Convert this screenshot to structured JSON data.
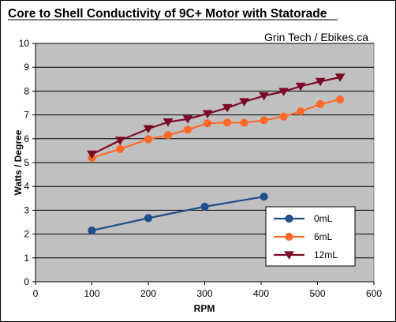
{
  "chart_data": {
    "type": "line",
    "title": "Core to Shell Conductivity of 9C+ Motor with Statorade",
    "subtitle": "Grin Tech / Ebikes.ca",
    "xlabel": "RPM",
    "ylabel": "Watts / Degree",
    "xlim": [
      0,
      600
    ],
    "ylim": [
      0,
      10
    ],
    "xticks": [
      "0",
      "100",
      "200",
      "300",
      "400",
      "500",
      "600"
    ],
    "yticks": [
      "0",
      "1",
      "2",
      "3",
      "4",
      "5",
      "6",
      "7",
      "8",
      "9",
      "10"
    ],
    "grid": "horizontal",
    "plot_background": "#c0c0c0",
    "legend_position": "bottom-right",
    "series": [
      {
        "name": "0mL",
        "color": "#1f4e8c",
        "marker": "circle",
        "x": [
          100,
          200,
          300,
          405
        ],
        "y": [
          2.15,
          2.67,
          3.15,
          3.57
        ]
      },
      {
        "name": "6mL",
        "color": "#ff6a2a",
        "marker": "circle",
        "x": [
          100,
          150,
          200,
          235,
          270,
          305,
          340,
          370,
          405,
          440,
          470,
          505,
          540
        ],
        "y": [
          5.2,
          5.57,
          5.98,
          6.15,
          6.38,
          6.65,
          6.68,
          6.67,
          6.77,
          6.93,
          7.15,
          7.45,
          7.65
        ]
      },
      {
        "name": "12mL",
        "color": "#7b0a26",
        "marker": "triangle-down",
        "x": [
          100,
          150,
          200,
          235,
          270,
          305,
          340,
          370,
          405,
          440,
          470,
          505,
          540
        ],
        "y": [
          5.35,
          5.93,
          6.42,
          6.7,
          6.83,
          7.05,
          7.3,
          7.55,
          7.8,
          7.98,
          8.2,
          8.4,
          8.58
        ]
      }
    ]
  }
}
